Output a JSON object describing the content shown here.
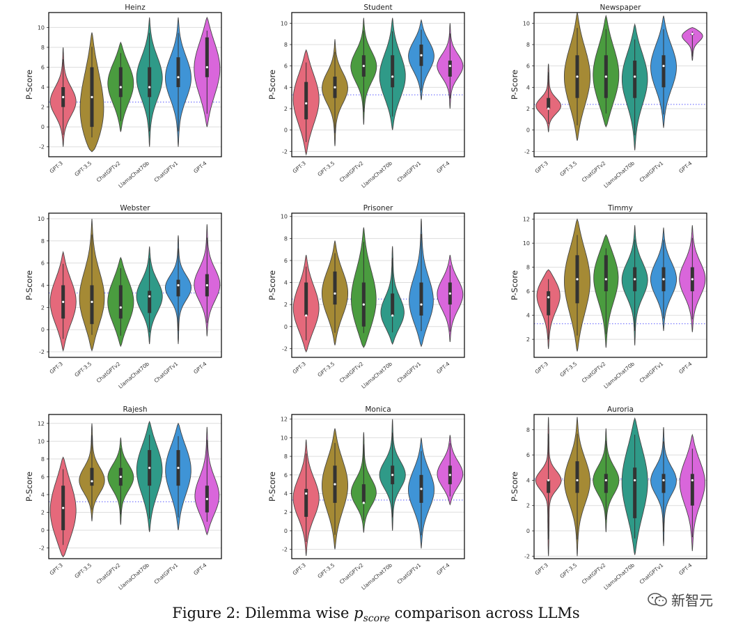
{
  "figure": {
    "caption_prefix": "Figure 2: Dilemma wise ",
    "caption_math": "p",
    "caption_sub": "score",
    "caption_suffix": " comparison across LLMs",
    "watermark_text": "新智元"
  },
  "style": {
    "colors": [
      "#e5697b",
      "#a58a35",
      "#4a9c3f",
      "#2f9a88",
      "#3f94d6",
      "#d966db"
    ],
    "frame_color": "#000000",
    "grid_color": "#dddddd",
    "ref_line_color": "#5a5aff",
    "box_color": "#333333",
    "median_color": "#ffffff"
  },
  "chart_data": [
    {
      "type": "violin",
      "title": "Heinz",
      "ylabel": "P-Score",
      "ylim": [
        -3,
        11.5
      ],
      "yticks": [
        -2,
        0,
        2,
        4,
        6,
        8,
        10
      ],
      "ref_line": 2.5,
      "categories": [
        "GPT-3",
        "GPT-3.5",
        "ChatGPTv2",
        "LlamaChat70b",
        "ChatGPTv1",
        "GPT-4"
      ],
      "series": [
        {
          "name": "GPT-3",
          "min": -2,
          "max": 8,
          "q1": 2,
          "median": 3,
          "q3": 4,
          "mode": 2.5
        },
        {
          "name": "GPT-3.5",
          "min": -2.5,
          "max": 9.5,
          "q1": 0,
          "median": 3,
          "q3": 6,
          "mode": 0.5
        },
        {
          "name": "ChatGPTv2",
          "min": -0.5,
          "max": 8.5,
          "q1": 3,
          "median": 4,
          "q3": 6,
          "mode": 4.5
        },
        {
          "name": "LlamaChat70b",
          "min": -2,
          "max": 11,
          "q1": 3,
          "median": 4,
          "q3": 6,
          "mode": 5
        },
        {
          "name": "ChatGPTv1",
          "min": -2,
          "max": 11,
          "q1": 4,
          "median": 5,
          "q3": 7,
          "mode": 5
        },
        {
          "name": "GPT-4",
          "min": 0,
          "max": 11,
          "q1": 5,
          "median": 6,
          "q3": 9,
          "mode": 6
        }
      ]
    },
    {
      "type": "violin",
      "title": "Student",
      "ylabel": "P-Score",
      "ylim": [
        -2.5,
        11
      ],
      "yticks": [
        -2,
        0,
        2,
        4,
        6,
        8,
        10
      ],
      "ref_line": 3.3,
      "categories": [
        "GPT-3",
        "GPT-3.5",
        "ChatGPTv2",
        "LlamaChat70b",
        "ChatGPTv1",
        "GPT-4"
      ],
      "series": [
        {
          "name": "GPT-3",
          "min": -2.3,
          "max": 7.5,
          "q1": 1,
          "median": 2.5,
          "q3": 4.5,
          "mode": 3
        },
        {
          "name": "GPT-3.5",
          "min": -1.5,
          "max": 8.5,
          "q1": 3,
          "median": 4,
          "q3": 5,
          "mode": 4
        },
        {
          "name": "ChatGPTv2",
          "min": 0.5,
          "max": 10.5,
          "q1": 5,
          "median": 6,
          "q3": 7,
          "mode": 6
        },
        {
          "name": "LlamaChat70b",
          "min": 0,
          "max": 10.5,
          "q1": 4,
          "median": 5,
          "q3": 7,
          "mode": 5
        },
        {
          "name": "ChatGPTv1",
          "min": 2.8,
          "max": 10.3,
          "q1": 6,
          "median": 7,
          "q3": 8,
          "mode": 7
        },
        {
          "name": "GPT-4",
          "min": 2,
          "max": 10,
          "q1": 5,
          "median": 6,
          "q3": 6.5,
          "mode": 6
        }
      ]
    },
    {
      "type": "violin",
      "title": "Newspaper",
      "ylabel": "P-Score",
      "ylim": [
        -2.5,
        11
      ],
      "yticks": [
        -2,
        0,
        2,
        4,
        6,
        8,
        10
      ],
      "ref_line": 2.4,
      "categories": [
        "GPT-3",
        "GPT-3.5",
        "ChatGPTv2",
        "LlamaChat70b",
        "ChatGPTv1",
        "GPT-4"
      ],
      "series": [
        {
          "name": "GPT-3",
          "min": -0.2,
          "max": 6.2,
          "q1": 2,
          "median": 2,
          "q3": 3,
          "mode": 2.2
        },
        {
          "name": "GPT-3.5",
          "min": -1,
          "max": 11,
          "q1": 3,
          "median": 5,
          "q3": 7,
          "mode": 5
        },
        {
          "name": "ChatGPTv2",
          "min": 0.3,
          "max": 10.7,
          "q1": 3,
          "median": 5,
          "q3": 7,
          "mode": 5
        },
        {
          "name": "LlamaChat70b",
          "min": -1.9,
          "max": 9.9,
          "q1": 3,
          "median": 5,
          "q3": 6.5,
          "mode": 5
        },
        {
          "name": "ChatGPTv1",
          "min": 0.2,
          "max": 10.7,
          "q1": 4,
          "median": 6,
          "q3": 7,
          "mode": 6
        },
        {
          "name": "GPT-4",
          "min": 6.5,
          "max": 9.6,
          "q1": 9,
          "median": 9,
          "q3": 9,
          "mode": 9
        }
      ]
    },
    {
      "type": "violin",
      "title": "Webster",
      "ylabel": "P-Score",
      "ylim": [
        -2.5,
        10.5
      ],
      "yticks": [
        -2,
        0,
        2,
        4,
        6,
        8,
        10
      ],
      "ref_line": 3.3,
      "categories": [
        "GPT-3",
        "GPT-3.5",
        "ChatGPTv2",
        "LlamaChat70b",
        "ChatGPTv1",
        "GPT-4"
      ],
      "series": [
        {
          "name": "GPT-3",
          "min": -1.9,
          "max": 7,
          "q1": 1,
          "median": 2.5,
          "q3": 4,
          "mode": 2.5
        },
        {
          "name": "GPT-3.5",
          "min": -1.9,
          "max": 10,
          "q1": 0.5,
          "median": 2.5,
          "q3": 4,
          "mode": 2.5
        },
        {
          "name": "ChatGPTv2",
          "min": -1.5,
          "max": 6.5,
          "q1": 1,
          "median": 2,
          "q3": 4,
          "mode": 2.5
        },
        {
          "name": "LlamaChat70b",
          "min": -1.3,
          "max": 7.5,
          "q1": 1.5,
          "median": 3,
          "q3": 3.5,
          "mode": 3
        },
        {
          "name": "ChatGPTv1",
          "min": -1.3,
          "max": 8.5,
          "q1": 3,
          "median": 4,
          "q3": 4.5,
          "mode": 3.8
        },
        {
          "name": "GPT-4",
          "min": -0.6,
          "max": 9.5,
          "q1": 3,
          "median": 4,
          "q3": 5,
          "mode": 4
        }
      ]
    },
    {
      "type": "violin",
      "title": "Prisoner",
      "ylabel": "P-Score",
      "ylim": [
        -2.8,
        10.3
      ],
      "yticks": [
        -2,
        0,
        2,
        4,
        6,
        8,
        10
      ],
      "ref_line": 2.5,
      "categories": [
        "GPT-3",
        "GPT-3.5",
        "ChatGPTv2",
        "LlamaChat70b",
        "ChatGPTv1",
        "GPT-4"
      ],
      "series": [
        {
          "name": "GPT-3",
          "min": -2.3,
          "max": 6.5,
          "q1": 1,
          "median": 1,
          "q3": 4,
          "mode": 1.5
        },
        {
          "name": "GPT-3.5",
          "min": -1.7,
          "max": 7.8,
          "q1": 2,
          "median": 3,
          "q3": 5,
          "mode": 3
        },
        {
          "name": "ChatGPTv2",
          "min": -1.9,
          "max": 9,
          "q1": 0,
          "median": 2,
          "q3": 4,
          "mode": 2
        },
        {
          "name": "LlamaChat70b",
          "min": -1.6,
          "max": 7.3,
          "q1": 1,
          "median": 1,
          "q3": 3,
          "mode": 1
        },
        {
          "name": "ChatGPTv1",
          "min": -1.8,
          "max": 9.8,
          "q1": 1,
          "median": 2,
          "q3": 4,
          "mode": 2
        },
        {
          "name": "GPT-4",
          "min": -1.4,
          "max": 6.5,
          "q1": 2,
          "median": 3,
          "q3": 4,
          "mode": 3
        }
      ]
    },
    {
      "type": "violin",
      "title": "Timmy",
      "ylabel": "P-Score",
      "ylim": [
        0.5,
        12.5
      ],
      "yticks": [
        2,
        4,
        6,
        8,
        10,
        12
      ],
      "ref_line": 3.3,
      "categories": [
        "GPT-3",
        "GPT-3.5",
        "ChatGPTv2",
        "LlamaChat70b",
        "ChatGPTv1",
        "GPT-4"
      ],
      "series": [
        {
          "name": "GPT-3",
          "min": 1.2,
          "max": 7.8,
          "q1": 4,
          "median": 5.5,
          "q3": 6,
          "mode": 6
        },
        {
          "name": "GPT-3.5",
          "min": 1,
          "max": 12,
          "q1": 5,
          "median": 7,
          "q3": 9,
          "mode": 7
        },
        {
          "name": "ChatGPTv2",
          "min": 1.3,
          "max": 10.7,
          "q1": 6,
          "median": 7,
          "q3": 9,
          "mode": 7.5
        },
        {
          "name": "LlamaChat70b",
          "min": 1.5,
          "max": 11.5,
          "q1": 6,
          "median": 7,
          "q3": 8,
          "mode": 7
        },
        {
          "name": "ChatGPTv1",
          "min": 2.7,
          "max": 11.3,
          "q1": 6,
          "median": 7,
          "q3": 8,
          "mode": 7
        },
        {
          "name": "GPT-4",
          "min": 2.6,
          "max": 11.5,
          "q1": 6,
          "median": 7,
          "q3": 8,
          "mode": 7
        }
      ]
    },
    {
      "type": "violin",
      "title": "Rajesh",
      "ylabel": "P-Score",
      "ylim": [
        -3.2,
        13
      ],
      "yticks": [
        -2,
        0,
        2,
        4,
        6,
        8,
        10,
        12
      ],
      "ref_line": 3.2,
      "categories": [
        "GPT-3",
        "GPT-3.5",
        "ChatGPTv2",
        "LlamaChat70b",
        "ChatGPTv1",
        "GPT-4"
      ],
      "series": [
        {
          "name": "GPT-3",
          "min": -3,
          "max": 8.2,
          "q1": 0,
          "median": 2.5,
          "q3": 5,
          "mode": 2
        },
        {
          "name": "GPT-3.5",
          "min": 1,
          "max": 12,
          "q1": 5,
          "median": 5.5,
          "q3": 7,
          "mode": 5.5
        },
        {
          "name": "ChatGPTv2",
          "min": 0.6,
          "max": 10.4,
          "q1": 5,
          "median": 6,
          "q3": 7,
          "mode": 6
        },
        {
          "name": "LlamaChat70b",
          "min": -0.2,
          "max": 12.2,
          "q1": 5,
          "median": 7,
          "q3": 9,
          "mode": 7
        },
        {
          "name": "ChatGPTv1",
          "min": 0,
          "max": 12,
          "q1": 5,
          "median": 7,
          "q3": 9,
          "mode": 7
        },
        {
          "name": "GPT-4",
          "min": -0.5,
          "max": 11.6,
          "q1": 2,
          "median": 3.5,
          "q3": 5,
          "mode": 3.5
        }
      ]
    },
    {
      "type": "violin",
      "title": "Monica",
      "ylabel": "P-Score",
      "ylim": [
        -3,
        12.5
      ],
      "yticks": [
        -2,
        0,
        2,
        4,
        6,
        8,
        10,
        12
      ],
      "ref_line": 3.3,
      "categories": [
        "GPT-3",
        "GPT-3.5",
        "ChatGPTv2",
        "LlamaChat70b",
        "ChatGPTv1",
        "GPT-4"
      ],
      "series": [
        {
          "name": "GPT-3",
          "min": -2.7,
          "max": 9.8,
          "q1": 1.5,
          "median": 4,
          "q3": 4.5,
          "mode": 3.5
        },
        {
          "name": "GPT-3.5",
          "min": -2,
          "max": 11,
          "q1": 3,
          "median": 5,
          "q3": 7,
          "mode": 5
        },
        {
          "name": "ChatGPTv2",
          "min": -0.2,
          "max": 10.6,
          "q1": 3,
          "median": 3,
          "q3": 5,
          "mode": 4
        },
        {
          "name": "LlamaChat70b",
          "min": 0,
          "max": 12,
          "q1": 5,
          "median": 6,
          "q3": 7,
          "mode": 6
        },
        {
          "name": "ChatGPTv1",
          "min": -1.9,
          "max": 10,
          "q1": 3,
          "median": 4.5,
          "q3": 6,
          "mode": 4.5
        },
        {
          "name": "GPT-4",
          "min": 2.8,
          "max": 10.3,
          "q1": 5,
          "median": 6,
          "q3": 7,
          "mode": 6
        }
      ]
    },
    {
      "type": "violin",
      "title": "Auroria",
      "ylabel": "P-Score",
      "ylim": [
        -2.2,
        9.2
      ],
      "yticks": [
        -2,
        0,
        2,
        4,
        6,
        8
      ],
      "ref_line": 4.1,
      "categories": [
        "GPT-3",
        "GPT-3.5",
        "ChatGPTv2",
        "LlamaChat70b",
        "ChatGPTv1",
        "GPT-4"
      ],
      "series": [
        {
          "name": "GPT-3",
          "min": -2,
          "max": 9,
          "q1": 3,
          "median": 4,
          "q3": 4,
          "mode": 4
        },
        {
          "name": "GPT-3.5",
          "min": -2,
          "max": 9,
          "q1": 3,
          "median": 4,
          "q3": 5.5,
          "mode": 4
        },
        {
          "name": "ChatGPTv2",
          "min": -0.1,
          "max": 8.1,
          "q1": 3,
          "median": 4,
          "q3": 4.5,
          "mode": 4
        },
        {
          "name": "LlamaChat70b",
          "min": -1.9,
          "max": 8.9,
          "q1": 1,
          "median": 4,
          "q3": 5,
          "mode": 4
        },
        {
          "name": "ChatGPTv1",
          "min": -1.2,
          "max": 8.2,
          "q1": 3,
          "median": 4,
          "q3": 4.5,
          "mode": 4
        },
        {
          "name": "GPT-4",
          "min": -1.6,
          "max": 7.6,
          "q1": 2,
          "median": 4,
          "q3": 4.5,
          "mode": 4
        }
      ]
    }
  ]
}
